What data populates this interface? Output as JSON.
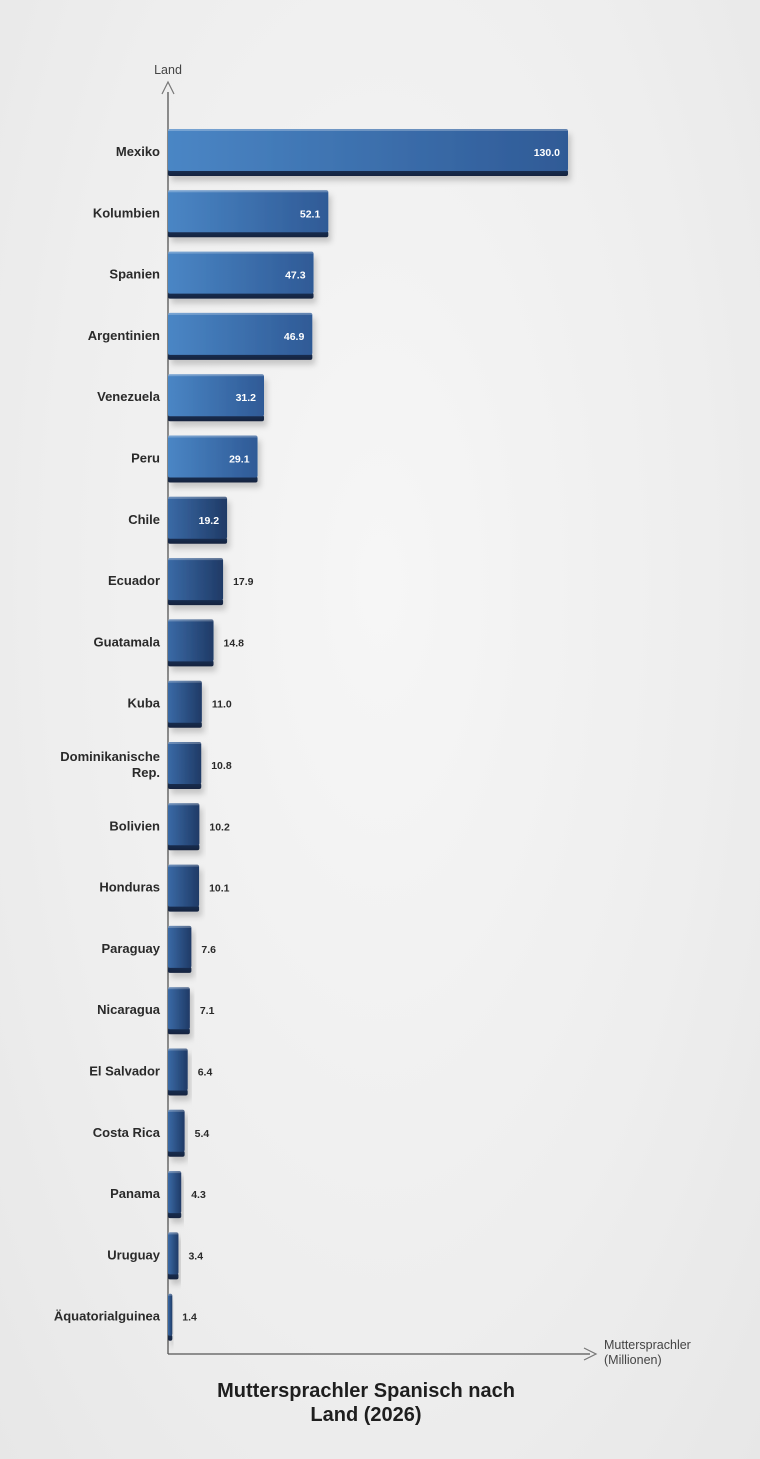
{
  "chart_data": {
    "type": "bar",
    "orientation": "horizontal",
    "title": "Muttersprachler Spanisch nach Land (2026)",
    "ylabel": "Land",
    "xlabel": "Muttersprachler (Millionen)",
    "categories": [
      "Mexiko",
      "Kolumbien",
      "Spanien",
      "Argentinien",
      "Venezuela",
      "Peru",
      "Chile",
      "Ecuador",
      "Guatamala",
      "Kuba",
      "Dominikanische Rep.",
      "Bolivien",
      "Honduras",
      "Paraguay",
      "Nicaragua",
      "El Salvador",
      "Costa Rica",
      "Panama",
      "Uruguay",
      "Äquatorialguinea"
    ],
    "values": [
      130.0,
      52.1,
      47.3,
      46.9,
      31.2,
      29.1,
      19.2,
      17.9,
      14.8,
      11.0,
      10.8,
      10.2,
      10.1,
      7.6,
      7.1,
      6.4,
      5.4,
      4.3,
      3.4,
      1.4
    ],
    "value_labels": [
      "130.0",
      "52.1",
      "47.3",
      "46.9",
      "31.2",
      "29.1",
      "19.2",
      "17.9",
      "14.8",
      "11.0",
      "10.8",
      "10.2",
      "10.1",
      "7.6",
      "7.1",
      "6.4",
      "5.4",
      "4.3",
      "3.4",
      "1.4"
    ],
    "xlim": [
      0,
      130
    ],
    "grid": false,
    "legend": "none",
    "colors": {
      "bar_light": "#4a86c5",
      "bar_dark": "#203a66",
      "axis": "#555555",
      "label_inside": "#ffffff",
      "label_outside": "#2a2a2a"
    }
  }
}
